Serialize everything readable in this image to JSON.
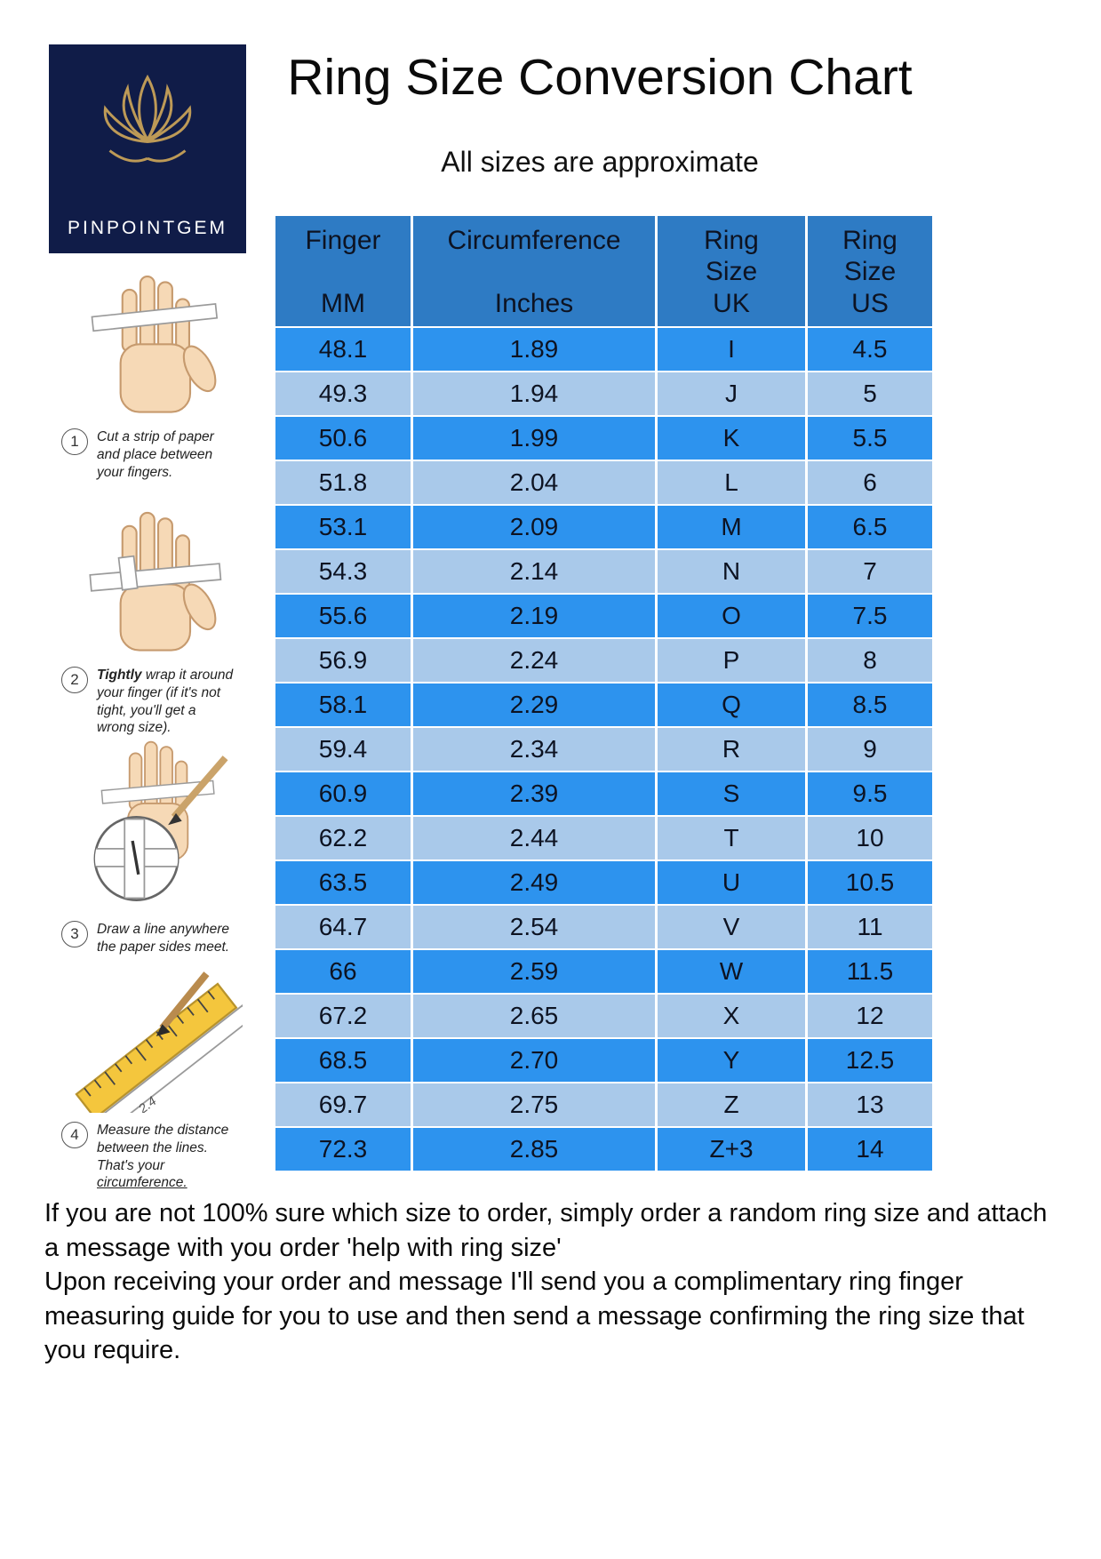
{
  "colors": {
    "logo_bg": "#101c48",
    "logo_gold": "#bd9a57",
    "header_bg": "#2e7bc4",
    "row_dark": "#2d93ee",
    "row_light": "#a9c9ea",
    "table_text": "#0d1322"
  },
  "logo": {
    "brand": "PINPOINTGEM"
  },
  "header": {
    "title": "Ring Size Conversion Chart",
    "subtitle": "All sizes are approximate"
  },
  "table": {
    "columns": [
      {
        "top": "Finger",
        "bottom": "MM"
      },
      {
        "top": "Circumference",
        "bottom": "Inches"
      },
      {
        "top": "Ring\nSize",
        "bottom": "UK"
      },
      {
        "top": "Ring\nSize",
        "bottom": "US"
      }
    ],
    "keys": [
      "mm",
      "inches",
      "uk",
      "us"
    ],
    "rows": [
      [
        "48.1",
        "1.89",
        "I",
        "4.5"
      ],
      [
        "49.3",
        "1.94",
        "J",
        "5"
      ],
      [
        "50.6",
        "1.99",
        "K",
        "5.5"
      ],
      [
        "51.8",
        "2.04",
        "L",
        "6"
      ],
      [
        "53.1",
        "2.09",
        "M",
        "6.5"
      ],
      [
        "54.3",
        "2.14",
        "N",
        "7"
      ],
      [
        "55.6",
        "2.19",
        "O",
        "7.5"
      ],
      [
        "56.9",
        "2.24",
        "P",
        "8"
      ],
      [
        "58.1",
        "2.29",
        "Q",
        "8.5"
      ],
      [
        "59.4",
        "2.34",
        "R",
        "9"
      ],
      [
        "60.9",
        "2.39",
        "S",
        "9.5"
      ],
      [
        "62.2",
        "2.44",
        "T",
        "10"
      ],
      [
        "63.5",
        "2.49",
        "U",
        "10.5"
      ],
      [
        "64.7",
        "2.54",
        "V",
        "11"
      ],
      [
        "66",
        "2.59",
        "W",
        "11.5"
      ],
      [
        "67.2",
        "2.65",
        "X",
        "12"
      ],
      [
        "68.5",
        "2.70",
        "Y",
        "12.5"
      ],
      [
        "69.7",
        "2.75",
        "Z",
        "13"
      ],
      [
        "72.3",
        "2.85",
        "Z+3",
        "14"
      ]
    ]
  },
  "steps": [
    {
      "num": "1",
      "text": "Cut a strip of paper and place between your fingers."
    },
    {
      "num": "2",
      "bold": "Tightly",
      "text": " wrap it around your finger (if it's not tight, you'll get a wrong size)."
    },
    {
      "num": "3",
      "text": "Draw a line anywhere the paper sides meet."
    },
    {
      "num": "4",
      "text": "Measure the distance between the lines. That's your ",
      "underline": "circumference.",
      "mark": "2.4"
    }
  ],
  "footer": {
    "para1": "If you are not 100% sure which size to order, simply order a random ring size and attach a message with you order 'help with ring size'",
    "para2": "Upon receiving your order and message I'll send you a complimentary ring finger measuring guide for you to use and then send a message confirming the ring size that you require."
  }
}
